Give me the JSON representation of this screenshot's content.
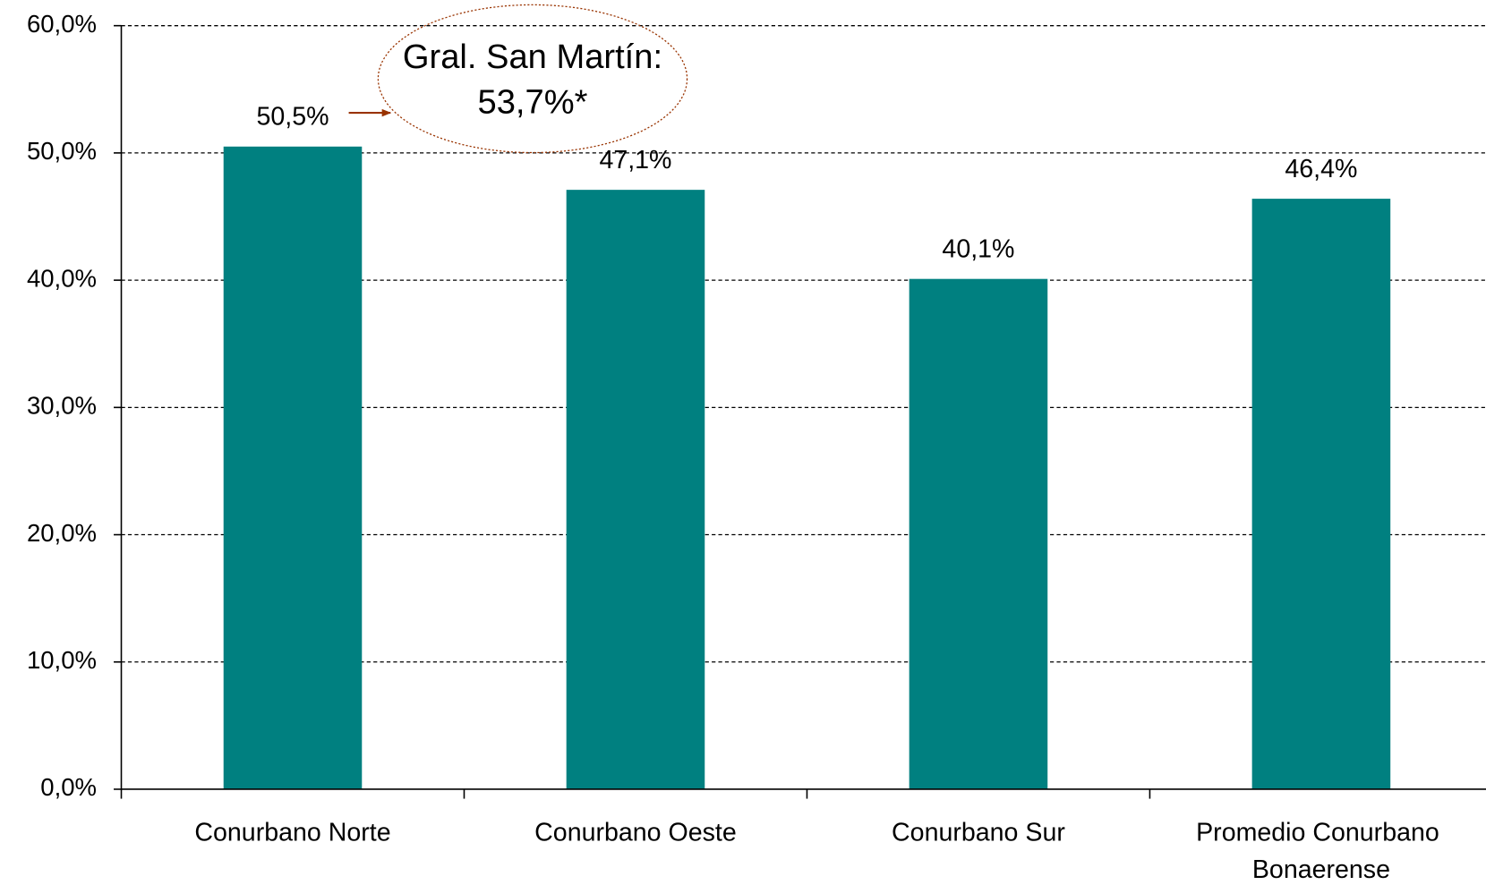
{
  "chart_data": {
    "type": "bar",
    "categories": [
      "Conurbano Norte",
      "Conurbano Oeste",
      "Conurbano Sur",
      "Promedio Conurbano Bonaerense"
    ],
    "values": [
      50.5,
      47.1,
      40.1,
      46.4
    ],
    "value_labels": [
      "50,5%",
      "47,1%",
      "40,1%",
      "46,4%"
    ],
    "color": "#008080",
    "ylim": [
      0,
      60
    ],
    "yticks": [
      {
        "value": 0,
        "label": "0,0%"
      },
      {
        "value": 10,
        "label": "10,0%"
      },
      {
        "value": 20,
        "label": "20,0%"
      },
      {
        "value": 30,
        "label": "30,0%"
      },
      {
        "value": 40,
        "label": "40,0%"
      },
      {
        "value": 50,
        "label": "50,0%"
      },
      {
        "value": 60,
        "label": "60,0%"
      }
    ],
    "grid": true,
    "annotation": [
      "Gral. San Martín:",
      "53,7%*"
    ]
  }
}
